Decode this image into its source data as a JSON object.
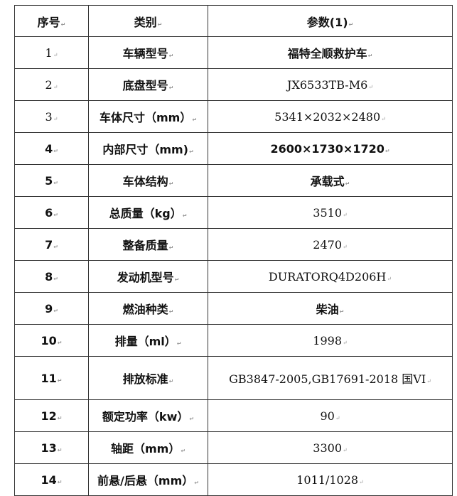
{
  "table": {
    "headers": [
      "序号",
      "类别",
      "参数(1)"
    ],
    "rows": [
      {
        "no": "1",
        "category": "车辆型号",
        "value": "福特全顺救护车"
      },
      {
        "no": "2",
        "category": "底盘型号",
        "value": "JX6533TB-M6"
      },
      {
        "no": "3",
        "category": "车体尺寸（mm）",
        "value": "5341×2032×2480"
      },
      {
        "no": "4",
        "category": "内部尺寸（mm)",
        "value": "2600×1730×1720"
      },
      {
        "no": "5",
        "category": "车体结构",
        "value": "承载式"
      },
      {
        "no": "6",
        "category": "总质量（kg）",
        "value": "3510"
      },
      {
        "no": "7",
        "category": "整备质量",
        "value": "2470"
      },
      {
        "no": "8",
        "category": "发动机型号",
        "value": "DURATORQ4D206H"
      },
      {
        "no": "9",
        "category": "燃油种类",
        "value": "柴油"
      },
      {
        "no": "10",
        "category": "排量（ml）",
        "value": "1998"
      },
      {
        "no": "11",
        "category": "排放标准",
        "value": "GB3847-2005,GB17691-2018 国VI"
      },
      {
        "no": "12",
        "category": "额定功率（kw）",
        "value": "90"
      },
      {
        "no": "13",
        "category": "轴距（mm）",
        "value": "3300"
      },
      {
        "no": "14",
        "category": "前悬/后悬（mm）",
        "value": "1011/1028"
      }
    ]
  }
}
